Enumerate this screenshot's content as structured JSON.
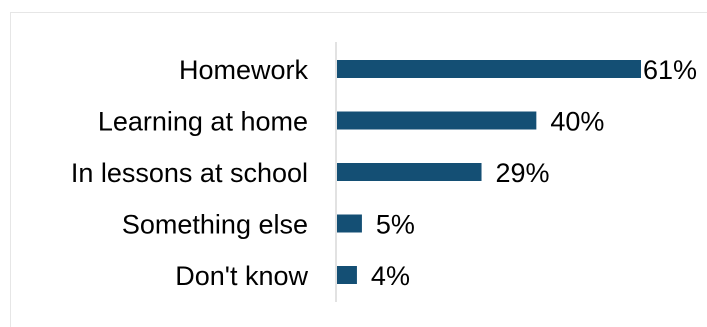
{
  "chart_data": {
    "type": "bar",
    "orientation": "horizontal",
    "categories": [
      "Homework",
      "Learning at home",
      "In lessons at school",
      "Something else",
      "Don't know"
    ],
    "values": [
      61,
      40,
      29,
      5,
      4
    ],
    "value_labels": [
      "61%",
      "40%",
      "29%",
      "5%",
      "4%"
    ],
    "unit": "%",
    "xlim": [
      0,
      61
    ],
    "grid": false,
    "legend": "none",
    "bar_color": "#144F74"
  }
}
